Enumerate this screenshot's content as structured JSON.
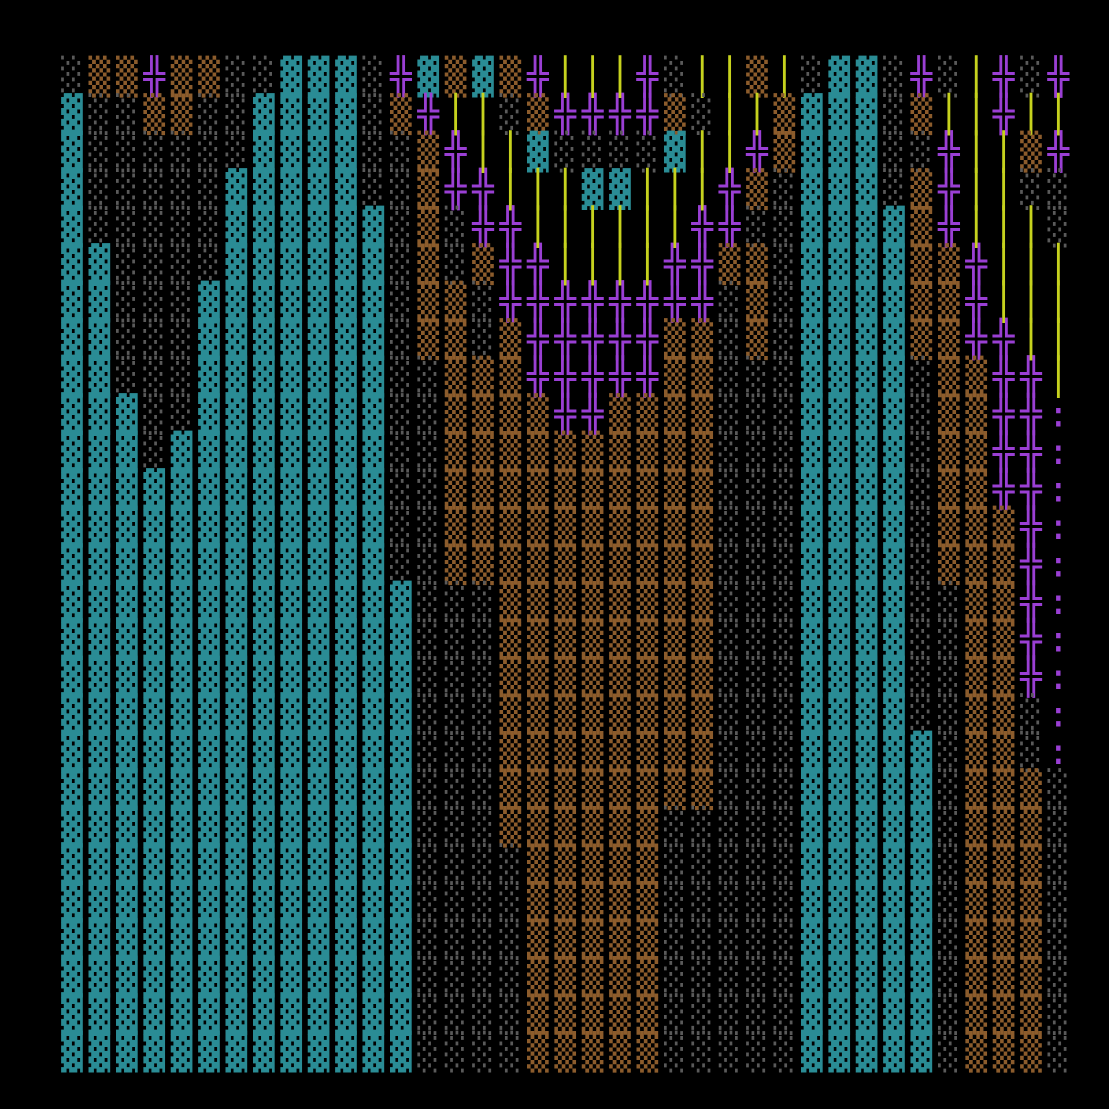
{
  "map": {
    "palette": {
      "▓": "#2a8c95",
      "▒": "#8c5c2c",
      "░": "#5a5a5a",
      "╬": "#9a3fd4",
      "│": "#c6d21e",
      ":": "#9a3fd4"
    },
    "rows": [
      "░▒▒╬▒▒░░▓▓▓░╬▓▒▓▒╬│││╬░││▒│░▓▓░╬░│╬░╬",
      "▓░░▒▒░░▓▓▓▓░▒╬││░▒╬╬╬╬▒░││▒▓▓▓░▒││╬││",
      "▓░░░░░░▓▓▓▓░░▒╬││▓░░░░▓││╬▒▓▓▓░░╬││▒╬",
      "▓░░░░░▓▓▓▓▓░░▒╬╬│││▓▓│││╬▒░▓▓▓░▒╬││░░",
      "▓░░░░░▓▓▓▓▓▓░▒░╬╬││││││╬╬░░▓▓▓▓▒╬│││░",
      "▓▓░░░░▓▓▓▓▓▓░▒░▒╬╬││││╬╬▒▒░▓▓▓▓▒▒╬│││",
      "▓▓░░░▓▓▓▓▓▓▓░▒▒░╬╬╬╬╬╬╬╬░▒░▓▓▓▓▒▒╬│││",
      "▓▓░░░▓▓▓▓▓▓▓░▒▒░▒╬╬╬╬╬▒▒░▒░▓▓▓▓▒▒╬╬││",
      "▓▓░░░▓▓▓▓▓▓▓░░▒▒▒╬╬╬╬╬▒▒░░░▓▓▓▓░▒▒╬╬│",
      "▓▓▓░░▓▓▓▓▓▓▓░░▒▒▒▒╬╬▒▒▒▒░░░▓▓▓▓░▒▒╬╬:",
      "▓▓▓░▓▓▓▓▓▓▓▓░░▒▒▒▒▒▒▒▒▒▒░░░▓▓▓▓░▒▒╬╬:",
      "▓▓▓▓▓▓▓▓▓▓▓▓░░▒▒▒▒▒▒▒▒▒▒░░░▓▓▓▓░▒▒╬╬:",
      "▓▓▓▓▓▓▓▓▓▓▓▓░░▒▒▒▒▒▒▒▒▒▒░░░▓▓▓▓░▒▒▒╬:",
      "▓▓▓▓▓▓▓▓▓▓▓▓░░▒▒▒▒▒▒▒▒▒▒░░░▓▓▓▓░▒▒▒╬:",
      "▓▓▓▓▓▓▓▓▓▓▓▓▓░░░▒▒▒▒▒▒▒▒░░░▓▓▓▓░░▒▒╬:",
      "▓▓▓▓▓▓▓▓▓▓▓▓▓░░░▒▒▒▒▒▒▒▒░░░▓▓▓▓░░▒▒╬:",
      "▓▓▓▓▓▓▓▓▓▓▓▓▓░░░▒▒▒▒▒▒▒▒░░░▓▓▓▓░░▒▒╬:",
      "▓▓▓▓▓▓▓▓▓▓▓▓▓░░░▒▒▒▒▒▒▒▒░░░▓▓▓▓░░▒▒░:",
      "▓▓▓▓▓▓▓▓▓▓▓▓▓░░░▒▒▒▒▒▒▒▒░░░▓▓▓▓▓░▒▒░:",
      "▓▓▓▓▓▓▓▓▓▓▓▓▓░░░▒▒▒▒▒▒▒▒░░░▓▓▓▓▓░▒▒▒░",
      "▓▓▓▓▓▓▓▓▓▓▓▓▓░░░▒▒▒▒▒▒░░░░░▓▓▓▓▓░▒▒▒░",
      "▓▓▓▓▓▓▓▓▓▓▓▓▓░░░░▒▒▒▒▒░░░░░▓▓▓▓▓░▒▒▒░",
      "▓▓▓▓▓▓▓▓▓▓▓▓▓░░░░▒▒▒▒▒░░░░░▓▓▓▓▓░▒▒▒░",
      "▓▓▓▓▓▓▓▓▓▓▓▓▓░░░░▒▒▒▒▒░░░░░▓▓▓▓▓░▒▒▒░",
      "▓▓▓▓▓▓▓▓▓▓▓▓▓░░░░▒▒▒▒▒░░░░░▓▓▓▓▓░▒▒▒░",
      "▓▓▓▓▓▓▓▓▓▓▓▓▓░░░░▒▒▒▒▒░░░░░▓▓▓▓▓░▒▒▒░",
      "▓▓▓▓▓▓▓▓▓▓▓▓▓░░░░▒▒▒▒▒░░░░░▓▓▓▓▓░▒▒▒░"
    ]
  }
}
